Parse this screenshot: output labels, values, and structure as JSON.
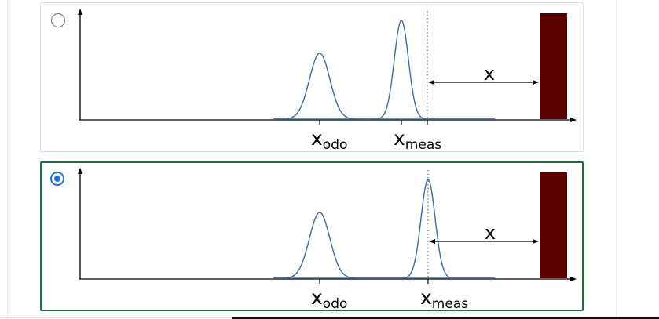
{
  "question": {
    "options": [
      {
        "id": "option-a",
        "selected": false,
        "labels": {
          "odo_main": "x",
          "odo_sub": "odo",
          "meas_main": "x",
          "meas_sub": "meas",
          "distance": "x"
        },
        "obstacle_color": "#5a0000",
        "curve_color": "#3d6aa0"
      },
      {
        "id": "option-b",
        "selected": true,
        "labels": {
          "odo_main": "x",
          "odo_sub": "odo",
          "meas_main": "x",
          "meas_sub": "meas",
          "distance": "x"
        },
        "obstacle_color": "#5a0000",
        "curve_color": "#3d6aa0"
      }
    ]
  },
  "colors": {
    "selected_border": "#1f6b3a",
    "radio_accent": "#1a73e8"
  }
}
